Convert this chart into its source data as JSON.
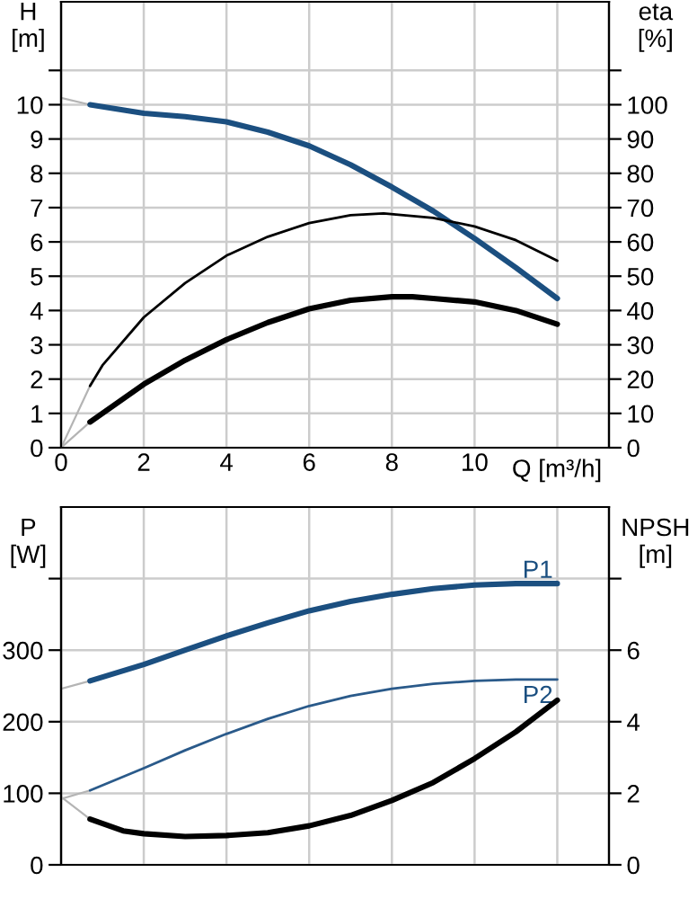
{
  "chart_data": [
    {
      "type": "line",
      "xlabel": "Q [m³/h]",
      "ylabel": "H\n[m]",
      "y2label": "eta\n[%]",
      "grid": true,
      "xlim": [
        0,
        13.25
      ],
      "xticks": [
        0,
        2,
        4,
        6,
        8,
        10,
        {
          "value": 12,
          "label": null
        }
      ],
      "ylim": [
        0,
        13
      ],
      "yticks": [
        0,
        1,
        2,
        3,
        4,
        5,
        6,
        7,
        8,
        9,
        10,
        {
          "value": 11,
          "label": null
        }
      ],
      "y2lim": [
        0,
        130
      ],
      "y2ticks": [
        0,
        10,
        20,
        30,
        40,
        50,
        60,
        70,
        80,
        90,
        100,
        {
          "value": 110,
          "label": null
        }
      ],
      "series": [
        {
          "color": "#b4b4b4",
          "x": [
            0,
            0.7
          ],
          "values": [
            10.2,
            10.0
          ]
        },
        {
          "color": "#b4b4b4",
          "x": [
            0,
            0.7
          ],
          "values": [
            0,
            18
          ],
          "axis": "y2"
        },
        {
          "color": "#b4b4b4",
          "x": [
            0,
            0.7
          ],
          "values": [
            0,
            7.5
          ],
          "axis": "y2"
        },
        {
          "color": "#1b4f80",
          "x": [
            0.7,
            2,
            3,
            4,
            5,
            6,
            7,
            8,
            9,
            10,
            11,
            12
          ],
          "values": [
            10.0,
            9.75,
            9.65,
            9.5,
            9.2,
            8.8,
            8.25,
            7.6,
            6.9,
            6.1,
            5.25,
            4.35
          ]
        },
        {
          "color": "#000000",
          "axis": "y2",
          "x": [
            0.7,
            1,
            2,
            3,
            4,
            5,
            6,
            7,
            7.8,
            9,
            10,
            11,
            12
          ],
          "values": [
            18,
            24,
            38,
            48,
            56,
            61.5,
            65.5,
            67.8,
            68.3,
            67,
            64.5,
            60.5,
            54.5
          ]
        },
        {
          "color": "#000000",
          "axis": "y2",
          "x": [
            0.7,
            2,
            3,
            4,
            5,
            6,
            7,
            8,
            8.5,
            9,
            10,
            11,
            12
          ],
          "values": [
            7.5,
            18.5,
            25.5,
            31.5,
            36.5,
            40.5,
            43,
            44,
            44,
            43.5,
            42.5,
            40,
            36
          ]
        }
      ]
    },
    {
      "type": "line",
      "ylabel": "P\n[W]",
      "y2label": "NPSH\n[m]",
      "grid": true,
      "tick_labels": "y",
      "xlim": [
        0,
        13.25
      ],
      "xticks": [
        0,
        2,
        4,
        6,
        8,
        10,
        12
      ],
      "ylim": [
        0,
        500
      ],
      "yticks": [
        0,
        100,
        200,
        300,
        {
          "value": 400,
          "label": null
        }
      ],
      "y2lim": [
        0,
        10
      ],
      "y2ticks": [
        0,
        2,
        4,
        6,
        {
          "value": 8,
          "label": null
        }
      ],
      "annotations": [
        "P1",
        "P2"
      ],
      "series": [
        {
          "color": "#b4b4b4",
          "x": [
            0,
            0.7
          ],
          "values": [
            246,
            257
          ]
        },
        {
          "color": "#b4b4b4",
          "x": [
            0,
            0.7
          ],
          "values": [
            92,
            104
          ]
        },
        {
          "color": "#b4b4b4",
          "x": [
            0,
            0.7
          ],
          "values": [
            1.9,
            1.28
          ],
          "axis": "y2"
        },
        {
          "color": "#1b4f80",
          "x": [
            0.7,
            2,
            3,
            4,
            5,
            6,
            7,
            8,
            9,
            10,
            11,
            12
          ],
          "values": [
            257,
            280,
            300,
            320,
            338,
            355,
            368,
            378,
            386,
            391,
            393,
            393
          ]
        },
        {
          "color": "#2a5a8a",
          "x": [
            0.7,
            2,
            3,
            4,
            5,
            6,
            7,
            8,
            9,
            10,
            11,
            12
          ],
          "values": [
            104,
            135,
            160,
            183,
            204,
            222,
            236,
            246,
            253,
            257,
            259,
            259
          ]
        },
        {
          "color": "#000000",
          "axis": "y2",
          "x": [
            0.7,
            1.5,
            2,
            3,
            4,
            5,
            6,
            7,
            8,
            9,
            10,
            11,
            12
          ],
          "values": [
            1.28,
            0.95,
            0.87,
            0.79,
            0.82,
            0.9,
            1.09,
            1.38,
            1.8,
            2.3,
            2.97,
            3.72,
            4.6
          ]
        }
      ]
    }
  ]
}
